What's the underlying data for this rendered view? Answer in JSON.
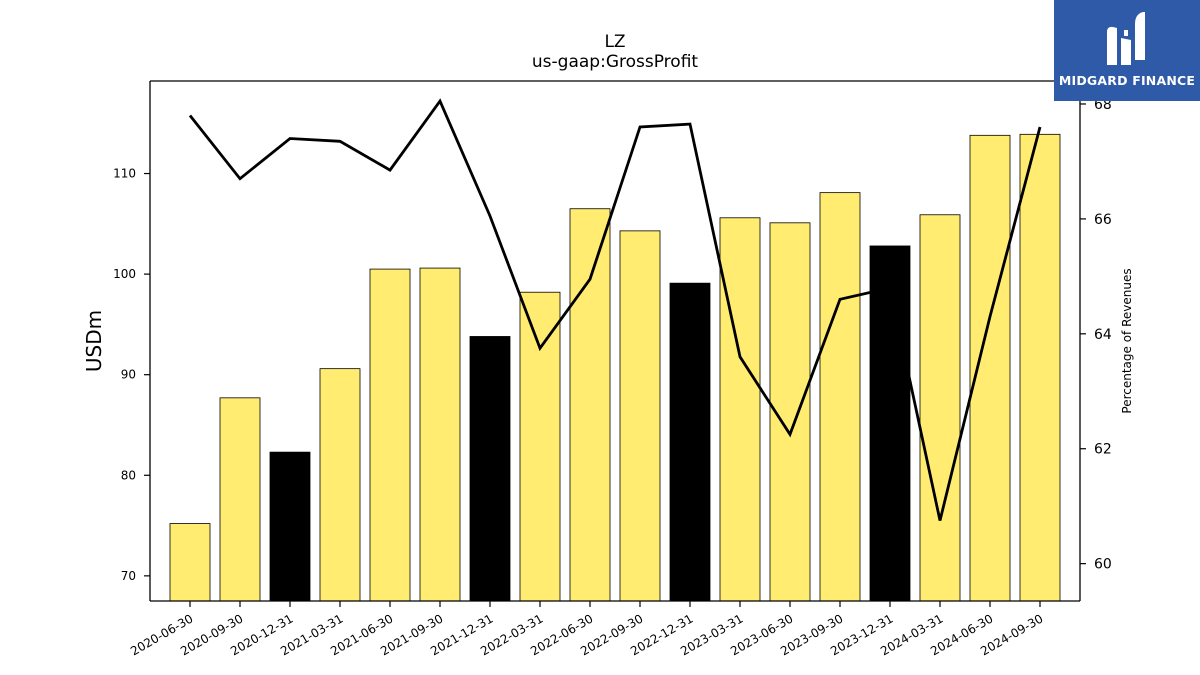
{
  "brand": {
    "name": "MIDGARD FINANCE",
    "bg_color": "#2f5aa8"
  },
  "chart_data": {
    "type": "bar",
    "title": "LZ",
    "subtitle": "us-gaap:GrossProfit",
    "ylabel": "USDm",
    "y2label": "Percentage of Revenues",
    "ylim": [
      67.5,
      119.2
    ],
    "y2lim": [
      59.35,
      68.4
    ],
    "yticks": [
      70,
      80,
      90,
      100,
      110
    ],
    "y2ticks": [
      60,
      62,
      64,
      66,
      68
    ],
    "categories": [
      "2020-06-30",
      "2020-09-30",
      "2020-12-31",
      "2021-03-31",
      "2021-06-30",
      "2021-09-30",
      "2021-12-31",
      "2022-03-31",
      "2022-06-30",
      "2022-09-30",
      "2022-12-31",
      "2023-03-31",
      "2023-06-30",
      "2023-09-30",
      "2023-12-31",
      "2024-03-31",
      "2024-06-30",
      "2024-09-30"
    ],
    "series": [
      {
        "kind": "bar",
        "axis": "left",
        "values": [
          75.2,
          87.7,
          82.3,
          90.6,
          100.5,
          100.6,
          93.8,
          98.2,
          106.5,
          104.3,
          99.1,
          105.6,
          105.1,
          108.1,
          102.8,
          105.9,
          113.8,
          113.9
        ],
        "colors": [
          "#ffec70",
          "#ffec70",
          "#000000",
          "#ffec70",
          "#ffec70",
          "#ffec70",
          "#000000",
          "#ffec70",
          "#ffec70",
          "#ffec70",
          "#000000",
          "#ffec70",
          "#ffec70",
          "#ffec70",
          "#000000",
          "#ffec70",
          "#ffec70",
          "#ffec70"
        ]
      },
      {
        "kind": "line",
        "axis": "right",
        "color": "#000000",
        "values": [
          67.8,
          66.7,
          67.4,
          67.35,
          66.85,
          68.05,
          66.05,
          63.75,
          64.95,
          67.6,
          67.65,
          63.6,
          62.25,
          64.6,
          64.8,
          60.75,
          64.3,
          67.6
        ]
      }
    ]
  }
}
